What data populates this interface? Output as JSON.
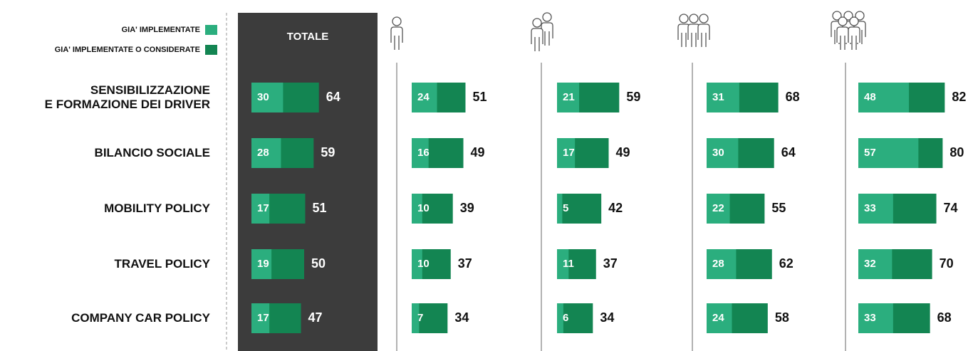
{
  "chart_data": {
    "type": "bar",
    "orientation": "horizontal",
    "categories": [
      "SENSIBILIZZAZIONE\nE FORMAZIONE DEI DRIVER",
      "BILANCIO SOCIALE",
      "MOBILITY POLICY",
      "TRAVEL POLICY",
      "COMPANY CAR POLICY"
    ],
    "series": [
      {
        "name": "GIA' IMPLEMENTATE",
        "color": "#2bae7e"
      },
      {
        "name": "GIA' IMPLEMENTATE O CONSIDERATE",
        "color": "#138552"
      }
    ],
    "panels": [
      {
        "title": "TOTALE",
        "series": [
          {
            "values": [
              30,
              28,
              17,
              19,
              17
            ]
          },
          {
            "values": [
              64,
              59,
              51,
              50,
              47
            ]
          }
        ]
      },
      {
        "series": [
          {
            "values": [
              24,
              16,
              10,
              10,
              7
            ]
          },
          {
            "values": [
              51,
              49,
              39,
              37,
              34
            ]
          }
        ]
      },
      {
        "series": [
          {
            "values": [
              21,
              17,
              5,
              11,
              6
            ]
          },
          {
            "values": [
              59,
              49,
              42,
              37,
              34
            ]
          }
        ]
      },
      {
        "series": [
          {
            "values": [
              31,
              30,
              22,
              28,
              24
            ]
          },
          {
            "values": [
              68,
              64,
              55,
              62,
              58
            ]
          }
        ]
      },
      {
        "series": [
          {
            "values": [
              48,
              57,
              33,
              32,
              33
            ]
          },
          {
            "values": [
              82,
              80,
              74,
              70,
              68
            ]
          }
        ]
      }
    ]
  }
}
